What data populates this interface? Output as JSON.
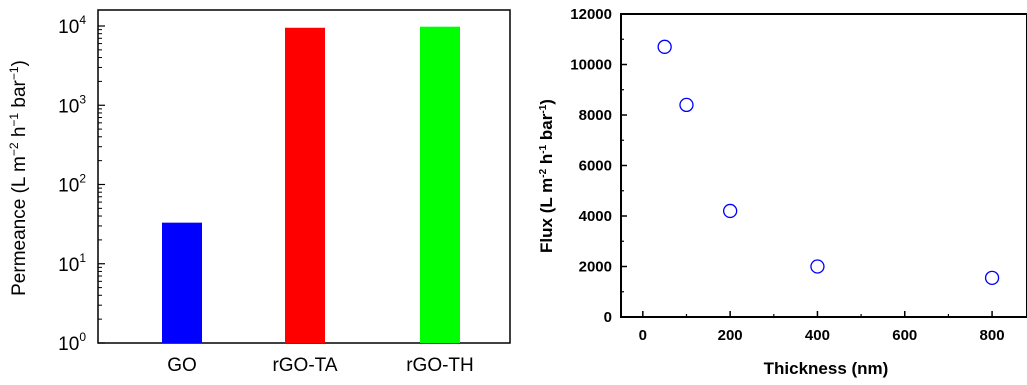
{
  "chart_data": [
    {
      "type": "bar",
      "categories": [
        "GO",
        "rGO-TA",
        "rGO-TH"
      ],
      "values": [
        33,
        9500,
        9800
      ],
      "colors": [
        "#0000ff",
        "#ff0000",
        "#00ff00"
      ],
      "ylabel_parts": {
        "pre": "Permeance (L m",
        "sup1": "−2",
        "mid1": " h",
        "sup2": "−1",
        "mid2": " bar",
        "sup3": "−1",
        "post": ")"
      },
      "yscale": "log",
      "ylim": [
        1,
        10000
      ],
      "yticks": [
        {
          "base": "10",
          "exp": "0",
          "value": 1
        },
        {
          "base": "10",
          "exp": "1",
          "value": 10
        },
        {
          "base": "10",
          "exp": "2",
          "value": 100
        },
        {
          "base": "10",
          "exp": "3",
          "value": 1000
        },
        {
          "base": "10",
          "exp": "4",
          "value": 10000
        }
      ],
      "grid": false
    },
    {
      "type": "scatter",
      "x": [
        50,
        100,
        200,
        400,
        800
      ],
      "y": [
        10700,
        8400,
        4200,
        2000,
        1550
      ],
      "marker_color": "#0000ff",
      "xlabel": "Thickness (nm)",
      "ylabel_parts": {
        "pre": "Flux (L m",
        "sup1": "-2",
        "mid1": " h",
        "sup2": "-1",
        "mid2": " bar",
        "sup3": "-1",
        "post": ")"
      },
      "xlim": [
        -50,
        880
      ],
      "ylim": [
        0,
        12000
      ],
      "xticks": [
        "0",
        "200",
        "400",
        "600",
        "800"
      ],
      "yticks": [
        "0",
        "2000",
        "4000",
        "6000",
        "8000",
        "10000",
        "12000"
      ],
      "grid": false
    }
  ]
}
